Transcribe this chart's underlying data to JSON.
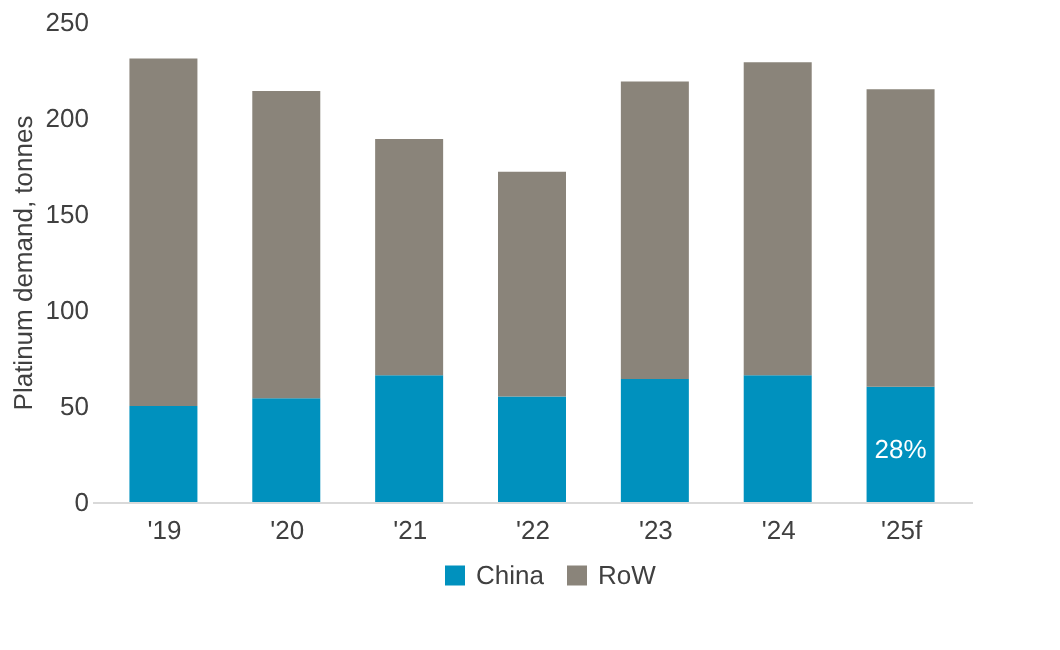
{
  "chart_data": {
    "type": "bar",
    "stacked": true,
    "ylabel": "Platinum demand, tonnes",
    "categories": [
      "'19",
      "'20",
      "'21",
      "'22",
      "'23",
      "'24",
      "'25f"
    ],
    "series": [
      {
        "name": "China",
        "color": "#0091be",
        "values": [
          50,
          54,
          66,
          55,
          64,
          66,
          60
        ]
      },
      {
        "name": "RoW",
        "color": "#8a847a",
        "values": [
          181,
          160,
          123,
          117,
          155,
          163,
          155
        ]
      }
    ],
    "ylim": [
      0,
      250
    ],
    "yticks": [
      0,
      50,
      100,
      150,
      200,
      250
    ],
    "grid": false,
    "legend": "bottom",
    "annotations": [
      "28%"
    ]
  }
}
